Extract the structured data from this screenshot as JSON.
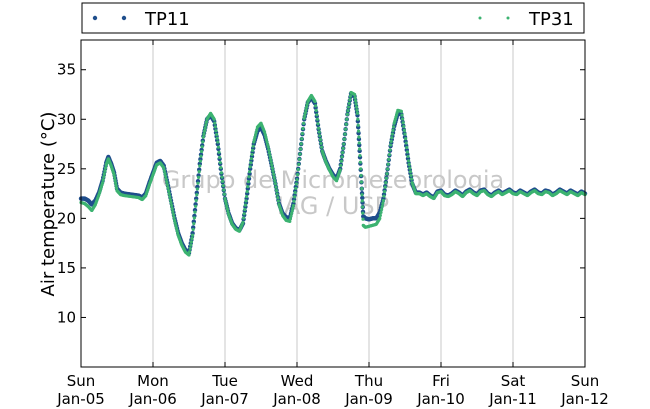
{
  "chart_data": {
    "type": "scatter",
    "ylabel": "Air temperature (°C)",
    "ylim": [
      5,
      38
    ],
    "yticks": [
      10,
      15,
      20,
      25,
      30,
      35
    ],
    "xlim": [
      "2015-01-05",
      "2015-01-12"
    ],
    "xticks": [
      {
        "day": "Sun",
        "date": "Jan-05"
      },
      {
        "day": "Mon",
        "date": "Jan-06"
      },
      {
        "day": "Tue",
        "date": "Jan-07"
      },
      {
        "day": "Wed",
        "date": "Jan-08"
      },
      {
        "day": "Thu",
        "date": "Jan-09"
      },
      {
        "day": "Fri",
        "date": "Jan-10"
      },
      {
        "day": "Sat",
        "date": "Jan-11"
      },
      {
        "day": "Sun",
        "date": "Jan-12"
      }
    ],
    "grid": "vertical",
    "legend": "top",
    "watermark": [
      "Grupo de Micrometeorologia",
      "IAG / USP"
    ],
    "series": [
      {
        "name": "TP11",
        "color": "#1f4e8c",
        "points": [
          [
            0.0,
            22.0
          ],
          [
            0.05,
            22.0
          ],
          [
            0.1,
            21.8
          ],
          [
            0.15,
            21.4
          ],
          [
            0.2,
            21.8
          ],
          [
            0.25,
            22.6
          ],
          [
            0.3,
            23.8
          ],
          [
            0.35,
            25.6
          ],
          [
            0.38,
            26.2
          ],
          [
            0.42,
            25.5
          ],
          [
            0.46,
            24.6
          ],
          [
            0.5,
            23.0
          ],
          [
            0.55,
            22.6
          ],
          [
            0.6,
            22.5
          ],
          [
            0.7,
            22.4
          ],
          [
            0.8,
            22.3
          ],
          [
            0.85,
            22.1
          ],
          [
            0.9,
            22.5
          ],
          [
            0.95,
            23.6
          ],
          [
            1.0,
            24.6
          ],
          [
            1.05,
            25.6
          ],
          [
            1.1,
            25.8
          ],
          [
            1.15,
            25.3
          ],
          [
            1.2,
            23.6
          ],
          [
            1.25,
            21.8
          ],
          [
            1.3,
            20.0
          ],
          [
            1.35,
            18.5
          ],
          [
            1.4,
            17.5
          ],
          [
            1.45,
            16.8
          ],
          [
            1.5,
            16.5
          ],
          [
            1.55,
            18.5
          ],
          [
            1.6,
            22.0
          ],
          [
            1.65,
            25.5
          ],
          [
            1.7,
            28.3
          ],
          [
            1.75,
            30.0
          ],
          [
            1.8,
            30.4
          ],
          [
            1.85,
            29.8
          ],
          [
            1.9,
            27.5
          ],
          [
            1.95,
            24.5
          ],
          [
            2.0,
            22.0
          ],
          [
            2.05,
            20.5
          ],
          [
            2.1,
            19.5
          ],
          [
            2.15,
            19.0
          ],
          [
            2.2,
            18.8
          ],
          [
            2.25,
            19.5
          ],
          [
            2.3,
            22.0
          ],
          [
            2.35,
            25.0
          ],
          [
            2.4,
            27.5
          ],
          [
            2.45,
            28.8
          ],
          [
            2.5,
            29.2
          ],
          [
            2.55,
            28.4
          ],
          [
            2.6,
            27.0
          ],
          [
            2.65,
            25.3
          ],
          [
            2.7,
            23.5
          ],
          [
            2.75,
            21.5
          ],
          [
            2.8,
            20.5
          ],
          [
            2.85,
            20.1
          ],
          [
            2.9,
            20.0
          ],
          [
            2.95,
            21.5
          ],
          [
            3.0,
            24.0
          ],
          [
            3.05,
            27.0
          ],
          [
            3.1,
            30.0
          ],
          [
            3.15,
            31.7
          ],
          [
            3.2,
            32.2
          ],
          [
            3.25,
            31.6
          ],
          [
            3.3,
            29.0
          ],
          [
            3.35,
            26.8
          ],
          [
            3.4,
            25.8
          ],
          [
            3.45,
            25.0
          ],
          [
            3.5,
            24.4
          ],
          [
            3.55,
            24.0
          ],
          [
            3.6,
            25.0
          ],
          [
            3.65,
            27.5
          ],
          [
            3.7,
            30.5
          ],
          [
            3.75,
            32.6
          ],
          [
            3.8,
            32.3
          ],
          [
            3.84,
            30.4
          ],
          [
            3.87,
            26.8
          ],
          [
            3.9,
            23.0
          ],
          [
            3.92,
            20.2
          ],
          [
            3.95,
            20.0
          ],
          [
            4.0,
            19.9
          ],
          [
            4.05,
            20.0
          ],
          [
            4.1,
            20.0
          ],
          [
            4.15,
            20.6
          ],
          [
            4.2,
            22.0
          ],
          [
            4.25,
            24.5
          ],
          [
            4.3,
            27.3
          ],
          [
            4.35,
            29.3
          ],
          [
            4.4,
            30.6
          ],
          [
            4.45,
            30.5
          ],
          [
            4.5,
            28.2
          ],
          [
            4.55,
            25.6
          ],
          [
            4.6,
            23.5
          ],
          [
            4.65,
            22.6
          ],
          [
            4.7,
            22.6
          ],
          [
            4.75,
            22.4
          ],
          [
            4.8,
            22.6
          ],
          [
            4.85,
            22.3
          ],
          [
            4.9,
            22.1
          ],
          [
            4.95,
            22.7
          ],
          [
            5.0,
            22.8
          ],
          [
            5.05,
            22.4
          ],
          [
            5.1,
            22.3
          ],
          [
            5.15,
            22.5
          ],
          [
            5.2,
            22.8
          ],
          [
            5.25,
            22.6
          ],
          [
            5.3,
            22.3
          ],
          [
            5.35,
            22.7
          ],
          [
            5.4,
            22.9
          ],
          [
            5.45,
            22.6
          ],
          [
            5.5,
            22.4
          ],
          [
            5.55,
            22.8
          ],
          [
            5.6,
            22.9
          ],
          [
            5.65,
            22.5
          ],
          [
            5.7,
            22.3
          ],
          [
            5.75,
            22.6
          ],
          [
            5.8,
            22.8
          ],
          [
            5.85,
            22.5
          ],
          [
            5.9,
            22.7
          ],
          [
            5.95,
            22.9
          ],
          [
            6.0,
            22.6
          ],
          [
            6.05,
            22.5
          ],
          [
            6.1,
            22.8
          ],
          [
            6.15,
            22.6
          ],
          [
            6.2,
            22.4
          ],
          [
            6.25,
            22.7
          ],
          [
            6.3,
            22.9
          ],
          [
            6.35,
            22.6
          ],
          [
            6.4,
            22.5
          ],
          [
            6.45,
            22.8
          ],
          [
            6.5,
            22.7
          ],
          [
            6.55,
            22.4
          ],
          [
            6.6,
            22.6
          ],
          [
            6.65,
            22.9
          ],
          [
            6.7,
            22.7
          ],
          [
            6.75,
            22.5
          ],
          [
            6.8,
            22.8
          ],
          [
            6.85,
            22.6
          ],
          [
            6.9,
            22.4
          ],
          [
            6.95,
            22.7
          ],
          [
            7.0,
            22.5
          ]
        ]
      },
      {
        "name": "TP31",
        "color": "#3cb371",
        "points": [
          [
            0.0,
            21.6
          ],
          [
            0.05,
            21.5
          ],
          [
            0.1,
            21.2
          ],
          [
            0.15,
            20.8
          ],
          [
            0.2,
            21.4
          ],
          [
            0.25,
            22.4
          ],
          [
            0.3,
            23.6
          ],
          [
            0.35,
            25.4
          ],
          [
            0.38,
            26.0
          ],
          [
            0.42,
            25.3
          ],
          [
            0.46,
            24.4
          ],
          [
            0.5,
            22.8
          ],
          [
            0.55,
            22.4
          ],
          [
            0.6,
            22.3
          ],
          [
            0.7,
            22.2
          ],
          [
            0.8,
            22.1
          ],
          [
            0.85,
            21.9
          ],
          [
            0.9,
            22.3
          ],
          [
            0.95,
            23.4
          ],
          [
            1.0,
            24.4
          ],
          [
            1.05,
            25.4
          ],
          [
            1.1,
            25.6
          ],
          [
            1.15,
            25.1
          ],
          [
            1.2,
            23.4
          ],
          [
            1.25,
            21.6
          ],
          [
            1.3,
            19.8
          ],
          [
            1.35,
            18.3
          ],
          [
            1.4,
            17.3
          ],
          [
            1.45,
            16.6
          ],
          [
            1.5,
            16.3
          ],
          [
            1.55,
            18.3
          ],
          [
            1.6,
            21.8
          ],
          [
            1.65,
            25.3
          ],
          [
            1.7,
            28.2
          ],
          [
            1.75,
            30.0
          ],
          [
            1.8,
            30.6
          ],
          [
            1.85,
            30.0
          ],
          [
            1.9,
            27.7
          ],
          [
            1.95,
            24.6
          ],
          [
            2.0,
            22.0
          ],
          [
            2.05,
            20.4
          ],
          [
            2.1,
            19.4
          ],
          [
            2.15,
            18.9
          ],
          [
            2.2,
            18.7
          ],
          [
            2.25,
            19.6
          ],
          [
            2.3,
            22.2
          ],
          [
            2.35,
            25.2
          ],
          [
            2.4,
            27.7
          ],
          [
            2.45,
            29.2
          ],
          [
            2.5,
            29.6
          ],
          [
            2.55,
            28.7
          ],
          [
            2.6,
            27.2
          ],
          [
            2.65,
            25.4
          ],
          [
            2.7,
            23.5
          ],
          [
            2.75,
            21.4
          ],
          [
            2.8,
            20.3
          ],
          [
            2.85,
            19.8
          ],
          [
            2.9,
            19.7
          ],
          [
            2.95,
            21.3
          ],
          [
            3.0,
            23.9
          ],
          [
            3.05,
            27.0
          ],
          [
            3.1,
            30.1
          ],
          [
            3.15,
            31.8
          ],
          [
            3.2,
            32.4
          ],
          [
            3.25,
            31.8
          ],
          [
            3.3,
            29.1
          ],
          [
            3.35,
            26.8
          ],
          [
            3.4,
            25.7
          ],
          [
            3.45,
            24.9
          ],
          [
            3.5,
            24.2
          ],
          [
            3.55,
            23.8
          ],
          [
            3.6,
            24.9
          ],
          [
            3.65,
            27.5
          ],
          [
            3.7,
            30.5
          ],
          [
            3.75,
            32.7
          ],
          [
            3.8,
            32.5
          ],
          [
            3.84,
            30.6
          ],
          [
            3.87,
            27.0
          ],
          [
            3.9,
            23.0
          ],
          [
            3.92,
            19.3
          ],
          [
            3.95,
            19.1
          ],
          [
            4.0,
            19.2
          ],
          [
            4.05,
            19.3
          ],
          [
            4.1,
            19.4
          ],
          [
            4.15,
            20.0
          ],
          [
            4.2,
            21.8
          ],
          [
            4.25,
            24.5
          ],
          [
            4.3,
            27.4
          ],
          [
            4.35,
            29.6
          ],
          [
            4.4,
            30.9
          ],
          [
            4.45,
            30.8
          ],
          [
            4.5,
            28.5
          ],
          [
            4.55,
            25.8
          ],
          [
            4.6,
            23.6
          ],
          [
            4.65,
            22.5
          ],
          [
            4.7,
            22.5
          ],
          [
            4.75,
            22.3
          ],
          [
            4.8,
            22.5
          ],
          [
            4.85,
            22.2
          ],
          [
            4.9,
            22.0
          ],
          [
            4.95,
            22.6
          ],
          [
            5.0,
            22.7
          ],
          [
            5.05,
            22.3
          ],
          [
            5.1,
            22.2
          ],
          [
            5.15,
            22.4
          ],
          [
            5.2,
            22.7
          ],
          [
            5.25,
            22.5
          ],
          [
            5.3,
            22.2
          ],
          [
            5.35,
            22.6
          ],
          [
            5.4,
            22.8
          ],
          [
            5.45,
            22.5
          ],
          [
            5.5,
            22.3
          ],
          [
            5.55,
            22.7
          ],
          [
            5.6,
            22.8
          ],
          [
            5.65,
            22.4
          ],
          [
            5.7,
            22.2
          ],
          [
            5.75,
            22.5
          ],
          [
            5.8,
            22.7
          ],
          [
            5.85,
            22.4
          ],
          [
            5.9,
            22.6
          ],
          [
            5.95,
            22.8
          ],
          [
            6.0,
            22.5
          ],
          [
            6.05,
            22.4
          ],
          [
            6.1,
            22.7
          ],
          [
            6.15,
            22.5
          ],
          [
            6.2,
            22.3
          ],
          [
            6.25,
            22.6
          ],
          [
            6.3,
            22.8
          ],
          [
            6.35,
            22.5
          ],
          [
            6.4,
            22.4
          ],
          [
            6.45,
            22.7
          ],
          [
            6.5,
            22.6
          ],
          [
            6.55,
            22.3
          ],
          [
            6.6,
            22.5
          ],
          [
            6.65,
            22.8
          ],
          [
            6.7,
            22.6
          ],
          [
            6.75,
            22.4
          ],
          [
            6.8,
            22.7
          ],
          [
            6.85,
            22.5
          ],
          [
            6.9,
            22.3
          ],
          [
            6.95,
            22.6
          ],
          [
            7.0,
            22.4
          ]
        ]
      }
    ]
  }
}
